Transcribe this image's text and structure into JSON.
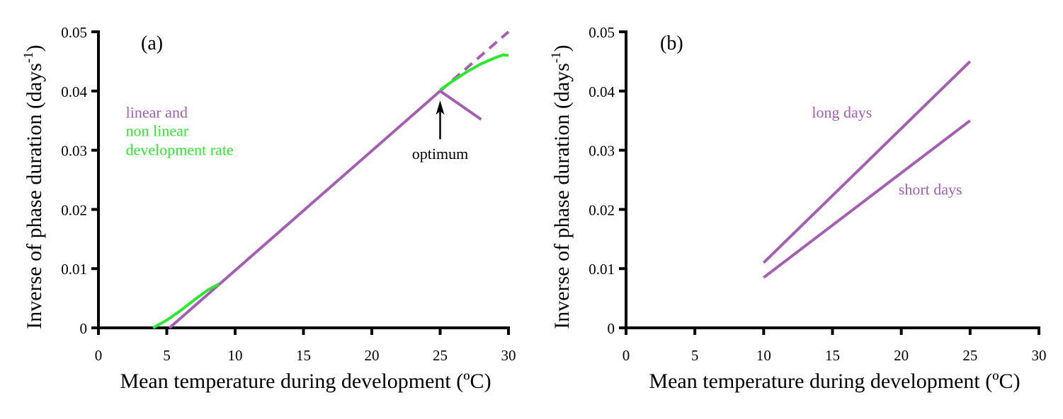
{
  "colors": {
    "linear": "#a35fb0",
    "nonlinear": "#2ee82e",
    "axis": "#000000"
  },
  "chart_data": [
    {
      "type": "line",
      "panel_label": "(a)",
      "xlabel": "Mean temperature during development (ºC)",
      "ylabel": "Inverse of phase duration (days",
      "ylabel_superscript": "-1",
      "ylabel_close": ")",
      "xlim": [
        0,
        30
      ],
      "ylim": [
        0,
        0.05
      ],
      "x_ticks": [
        0,
        5,
        10,
        15,
        20,
        25,
        30
      ],
      "x_tick_labels": [
        "0",
        "5",
        "10",
        "15",
        "20",
        "25",
        "30"
      ],
      "y_ticks": [
        0,
        0.01,
        0.02,
        0.03,
        0.04,
        0.05
      ],
      "y_tick_labels": [
        "0",
        "0.01",
        "0.02",
        "0.03",
        "0.04",
        "0.05"
      ],
      "grid": false,
      "series": [
        {
          "name": "linear development rate",
          "color_key": "linear",
          "style": "solid",
          "x": [
            5.2,
            25
          ],
          "y": [
            0,
            0.04
          ]
        },
        {
          "name": "linear beyond optimum (decline)",
          "color_key": "linear",
          "style": "solid",
          "x": [
            25,
            28
          ],
          "y": [
            0.04,
            0.0352
          ]
        },
        {
          "name": "linear extrapolation",
          "color_key": "linear",
          "style": "dashed",
          "x": [
            25,
            30
          ],
          "y": [
            0.04,
            0.05
          ]
        },
        {
          "name": "non linear development rate (low temperature)",
          "color_key": "nonlinear",
          "style": "solid",
          "x": [
            4.0,
            5.0,
            6.0,
            7.0,
            8.0,
            8.8
          ],
          "y": [
            0,
            0.0013,
            0.0029,
            0.0047,
            0.0064,
            0.0074
          ]
        },
        {
          "name": "non linear development rate (high temperature)",
          "color_key": "nonlinear",
          "style": "solid",
          "x": [
            25,
            26,
            27,
            28,
            29,
            29.6,
            30
          ],
          "y": [
            0.0402,
            0.0418,
            0.0433,
            0.0446,
            0.0456,
            0.0461,
            0.046
          ]
        }
      ],
      "annotations": [
        {
          "text": "linear and",
          "color_key": "linear",
          "x": 2.0,
          "y": 0.0355
        },
        {
          "text": "non linear",
          "color_key": "nonlinear",
          "x": 2.0,
          "y": 0.0324
        },
        {
          "text": "development rate",
          "color_key": "nonlinear",
          "x": 2.0,
          "y": 0.0292
        },
        {
          "text": "optimum",
          "color_key": "axis",
          "x": 25,
          "y": 0.0285,
          "arrow_to": [
            25,
            0.0384
          ]
        }
      ]
    },
    {
      "type": "line",
      "panel_label": "(b)",
      "xlabel": "Mean temperature during development (ºC)",
      "ylabel": "Inverse of phase duration (days",
      "ylabel_superscript": "-1",
      "ylabel_close": ")",
      "xlim": [
        0,
        30
      ],
      "ylim": [
        0,
        0.05
      ],
      "x_ticks": [
        0,
        5,
        10,
        15,
        20,
        25,
        30
      ],
      "x_tick_labels": [
        "0",
        "5",
        "10",
        "15",
        "20",
        "25",
        "30"
      ],
      "y_ticks": [
        0,
        0.01,
        0.02,
        0.03,
        0.04,
        0.05
      ],
      "y_tick_labels": [
        "0",
        "0.01",
        "0.02",
        "0.03",
        "0.04",
        "0.05"
      ],
      "grid": false,
      "series": [
        {
          "name": "long days",
          "color_key": "linear",
          "style": "solid",
          "x": [
            10,
            25
          ],
          "y": [
            0.011,
            0.045
          ]
        },
        {
          "name": "short days",
          "color_key": "linear",
          "style": "solid",
          "x": [
            10,
            25
          ],
          "y": [
            0.0085,
            0.035
          ]
        }
      ],
      "annotations": [
        {
          "text": "long days",
          "color_key": "linear",
          "x": 13.5,
          "y": 0.0355
        },
        {
          "text": "short days",
          "color_key": "linear",
          "x": 19.8,
          "y": 0.0225
        }
      ]
    }
  ]
}
